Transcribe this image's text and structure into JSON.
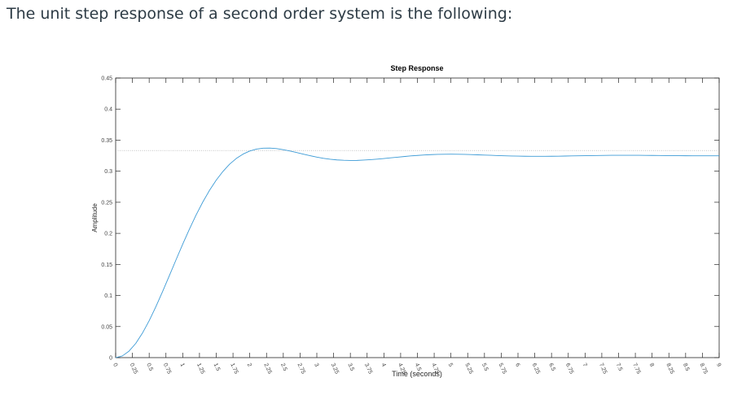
{
  "question": {
    "text": "The unit step response of a second order system is the following:"
  },
  "colors": {
    "curve": "#3d9bd6",
    "axes": "#262626",
    "steady_state_line": "#a0a0a0",
    "question_text": "#2d3b45"
  },
  "chart_data": {
    "type": "line",
    "title": "Step Response",
    "xlabel": "Time (seconds)",
    "ylabel": "Amplitude",
    "xlim": [
      0,
      9
    ],
    "ylim": [
      0,
      0.45
    ],
    "x_ticks": [
      "0",
      "0.25",
      "0.5",
      "0.75",
      "1",
      "1.25",
      "1.5",
      "1.75",
      "2",
      "2.25",
      "2.5",
      "2.75",
      "3",
      "3.25",
      "3.5",
      "3.75",
      "4",
      "4.25",
      "4.5",
      "4.75",
      "5",
      "5.25",
      "5.5",
      "5.75",
      "6",
      "6.25",
      "6.5",
      "6.75",
      "7",
      "7.25",
      "7.5",
      "7.75",
      "8",
      "8.25",
      "8.5",
      "8.75",
      "9"
    ],
    "y_ticks": [
      "0",
      "0.05",
      "0.1",
      "0.15",
      "0.2",
      "0.25",
      "0.3",
      "0.35",
      "0.4",
      "0.45"
    ],
    "grid": false,
    "steady_state": 0.3333,
    "series": [
      {
        "x": [
          0,
          0.1,
          0.2,
          0.3,
          0.4,
          0.5,
          0.6,
          0.7,
          0.8,
          0.9,
          1.0,
          1.1,
          1.2,
          1.3,
          1.4,
          1.5,
          1.6,
          1.7,
          1.8,
          1.9,
          2.0,
          2.1,
          2.2,
          2.3,
          2.4,
          2.5,
          2.6,
          2.7,
          2.8,
          2.9,
          3.0,
          3.1,
          3.2,
          3.3,
          3.4,
          3.5,
          3.6,
          3.7,
          3.8,
          3.9,
          4.0,
          4.1,
          4.2,
          4.3,
          4.4,
          4.5,
          4.6,
          4.7,
          4.8,
          4.9,
          5.0,
          5.1,
          5.2,
          5.3,
          5.4,
          5.5,
          5.6,
          5.7,
          5.8,
          5.9,
          6.0,
          6.1,
          6.2,
          6.3,
          6.4,
          6.5,
          6.6,
          6.7,
          6.8,
          6.9,
          7.0,
          7.1,
          7.2,
          7.3,
          7.4,
          7.5,
          7.6,
          7.7,
          7.8,
          7.9,
          8.0,
          8.1,
          8.2,
          8.3,
          8.4,
          8.5,
          8.6,
          8.7,
          8.8,
          8.9,
          9.0
        ],
        "y": [
          0,
          0.0027,
          0.0105,
          0.0229,
          0.0395,
          0.0594,
          0.082,
          0.1063,
          0.1317,
          0.1573,
          0.1826,
          0.2068,
          0.2296,
          0.2505,
          0.2693,
          0.2857,
          0.2997,
          0.3114,
          0.3206,
          0.3276,
          0.3325,
          0.3356,
          0.3371,
          0.3373,
          0.3364,
          0.3347,
          0.3325,
          0.33,
          0.3274,
          0.325,
          0.3227,
          0.3208,
          0.3193,
          0.3182,
          0.3176,
          0.3173,
          0.3174,
          0.3179,
          0.3186,
          0.3194,
          0.3204,
          0.3215,
          0.3226,
          0.3236,
          0.3246,
          0.3254,
          0.3261,
          0.3267,
          0.3271,
          0.3273,
          0.3274,
          0.3273,
          0.3271,
          0.3268,
          0.3264,
          0.326,
          0.3256,
          0.3252,
          0.3248,
          0.3245,
          0.3243,
          0.3241,
          0.324,
          0.324,
          0.324,
          0.3241,
          0.3242,
          0.3244,
          0.3246,
          0.3248,
          0.325,
          0.3252,
          0.3253,
          0.3255,
          0.3256,
          0.3256,
          0.3256,
          0.3256,
          0.3256,
          0.3255,
          0.3254,
          0.3253,
          0.3252,
          0.3251,
          0.325,
          0.3249,
          0.3248,
          0.3248,
          0.3248,
          0.3248,
          0.3248
        ]
      }
    ]
  }
}
